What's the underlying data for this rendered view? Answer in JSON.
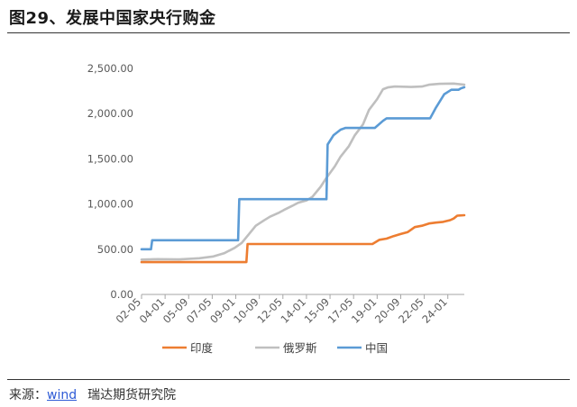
{
  "title": "图29、发展中国家央行购金",
  "source": {
    "prefix": "来源：",
    "link": "wind",
    "org": "瑞达期货研究院"
  },
  "chart_data": {
    "type": "line",
    "title": "",
    "xlabel": "",
    "ylabel": "",
    "ylim": [
      0,
      2500
    ],
    "yticks": [
      0,
      500,
      1000,
      1500,
      2000,
      2500
    ],
    "ytick_labels": [
      "0.00",
      "500.00",
      "1,000.00",
      "1,500.00",
      "2,000.00",
      "2,500.00"
    ],
    "x_range": [
      "2002-05",
      "2025-03"
    ],
    "xticks": [
      "2002-05",
      "2004-01",
      "2005-09",
      "2007-05",
      "2009-01",
      "2010-09",
      "2012-05",
      "2014-01",
      "2015-09",
      "2017-05",
      "2019-01",
      "2020-09",
      "2022-05",
      "2024-01"
    ],
    "xtick_labels": [
      "02-05",
      "04-01",
      "05-09",
      "07-05",
      "09-01",
      "10-09",
      "12-05",
      "14-01",
      "15-09",
      "17-05",
      "19-01",
      "20-09",
      "22-05",
      "24-01"
    ],
    "grid": false,
    "legend": "bottom",
    "series": [
      {
        "name": "印度",
        "color": "#ED7D31",
        "points": [
          [
            "2002-05",
            358
          ],
          [
            "2009-10",
            358
          ],
          [
            "2009-11",
            558
          ],
          [
            "2018-09",
            558
          ],
          [
            "2019-03",
            605
          ],
          [
            "2019-09",
            618
          ],
          [
            "2020-03",
            645
          ],
          [
            "2020-09",
            668
          ],
          [
            "2021-03",
            690
          ],
          [
            "2021-09",
            745
          ],
          [
            "2022-03",
            760
          ],
          [
            "2022-09",
            785
          ],
          [
            "2023-03",
            795
          ],
          [
            "2023-09",
            803
          ],
          [
            "2024-03",
            822
          ],
          [
            "2024-06",
            840
          ],
          [
            "2024-09",
            872
          ],
          [
            "2025-03",
            876
          ]
        ]
      },
      {
        "name": "俄罗斯",
        "color": "#BFBFBF",
        "points": [
          [
            "2002-05",
            385
          ],
          [
            "2003-06",
            390
          ],
          [
            "2005-01",
            387
          ],
          [
            "2006-06",
            400
          ],
          [
            "2007-06",
            420
          ],
          [
            "2008-03",
            455
          ],
          [
            "2008-12",
            515
          ],
          [
            "2009-06",
            570
          ],
          [
            "2010-01",
            680
          ],
          [
            "2010-06",
            760
          ],
          [
            "2011-01",
            820
          ],
          [
            "2011-06",
            860
          ],
          [
            "2012-01",
            900
          ],
          [
            "2012-06",
            935
          ],
          [
            "2013-01",
            980
          ],
          [
            "2013-06",
            1015
          ],
          [
            "2014-01",
            1040
          ],
          [
            "2014-06",
            1080
          ],
          [
            "2015-01",
            1190
          ],
          [
            "2015-06",
            1290
          ],
          [
            "2016-01",
            1415
          ],
          [
            "2016-06",
            1525
          ],
          [
            "2017-01",
            1640
          ],
          [
            "2017-06",
            1760
          ],
          [
            "2018-01",
            1880
          ],
          [
            "2018-06",
            2040
          ],
          [
            "2019-01",
            2160
          ],
          [
            "2019-06",
            2270
          ],
          [
            "2019-10",
            2290
          ],
          [
            "2020-04",
            2300
          ],
          [
            "2021-06",
            2295
          ],
          [
            "2022-03",
            2300
          ],
          [
            "2022-09",
            2320
          ],
          [
            "2023-06",
            2330
          ],
          [
            "2024-06",
            2333
          ],
          [
            "2025-03",
            2320
          ]
        ]
      },
      {
        "name": "中国",
        "color": "#5B9BD5",
        "points": [
          [
            "2002-05",
            500
          ],
          [
            "2003-01",
            500
          ],
          [
            "2003-02",
            600
          ],
          [
            "2009-03",
            600
          ],
          [
            "2009-04",
            1054
          ],
          [
            "2015-06",
            1054
          ],
          [
            "2015-07",
            1658
          ],
          [
            "2015-12",
            1762
          ],
          [
            "2016-06",
            1823
          ],
          [
            "2016-10",
            1842
          ],
          [
            "2018-11",
            1842
          ],
          [
            "2019-06",
            1920
          ],
          [
            "2019-09",
            1948
          ],
          [
            "2022-10",
            1948
          ],
          [
            "2023-03",
            2068
          ],
          [
            "2023-10",
            2215
          ],
          [
            "2024-04",
            2264
          ],
          [
            "2024-10",
            2264
          ],
          [
            "2024-12",
            2279
          ],
          [
            "2025-03",
            2292
          ]
        ]
      }
    ]
  }
}
